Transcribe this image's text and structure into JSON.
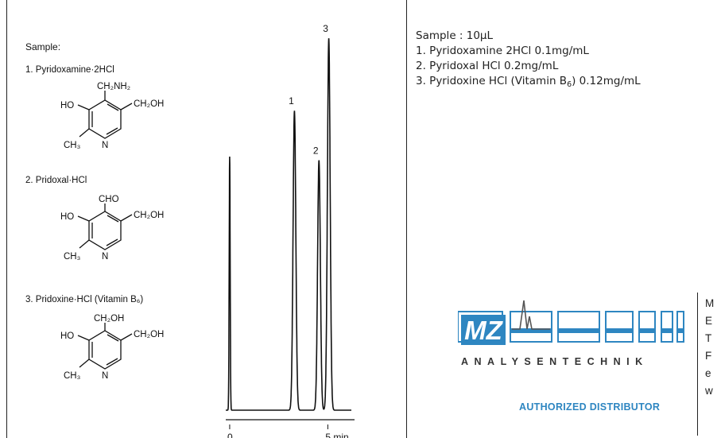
{
  "left_panel": {
    "heading": "Sample:",
    "compounds": [
      {
        "label": "1. Pyridoxamine·2HCl",
        "substituent": "CH₂NH₂"
      },
      {
        "label": "2. Pridoxal·HCl",
        "substituent": "CHO"
      },
      {
        "label": "3. Pridoxine·HCl (Vitamin B₆)",
        "substituent": "CH₂OH"
      }
    ],
    "ring_labels": {
      "ho": "HO",
      "ch2oh": "CH₂OH",
      "ch3": "CH₃",
      "n": "N"
    }
  },
  "chart_data": {
    "type": "line",
    "title": "",
    "xlabel": "",
    "ylabel": "",
    "x_unit": "min.",
    "xlim": [
      -0.2,
      6.2
    ],
    "ylim": [
      0,
      100
    ],
    "x_ticks": [
      {
        "value": 0,
        "label": "0"
      },
      {
        "value": 5,
        "label": "5 min."
      }
    ],
    "baseline": 2.5,
    "peaks": [
      {
        "label": "",
        "time": 0.0,
        "height": 69
      },
      {
        "label": "1",
        "time": 3.3,
        "height": 81
      },
      {
        "label": "2",
        "time": 4.55,
        "height": 68
      },
      {
        "label": "3",
        "time": 5.05,
        "height": 100
      }
    ],
    "grid": false,
    "legend": "none"
  },
  "sample_info": {
    "heading": "Sample : 10µL",
    "items": [
      {
        "text": "1. Pyridoxamine 2HCl 0.1mg/mL",
        "sub": "",
        "tail": ""
      },
      {
        "text": "2. Pyridoxal HCl 0.2mg/mL",
        "sub": "",
        "tail": ""
      },
      {
        "text": "3. Pyridoxine HCl (Vitamin B",
        "sub": "6",
        "tail": ") 0.12mg/mL"
      }
    ]
  },
  "logo": {
    "brand": "MZ",
    "subtitle": "ANALYSENTECHNIK",
    "tagline": "AUTHORIZED DISTRIBUTOR",
    "brand_color": "#2e86c1"
  },
  "contact_initials": [
    "M",
    "E",
    "T",
    "F",
    "e",
    "w"
  ]
}
